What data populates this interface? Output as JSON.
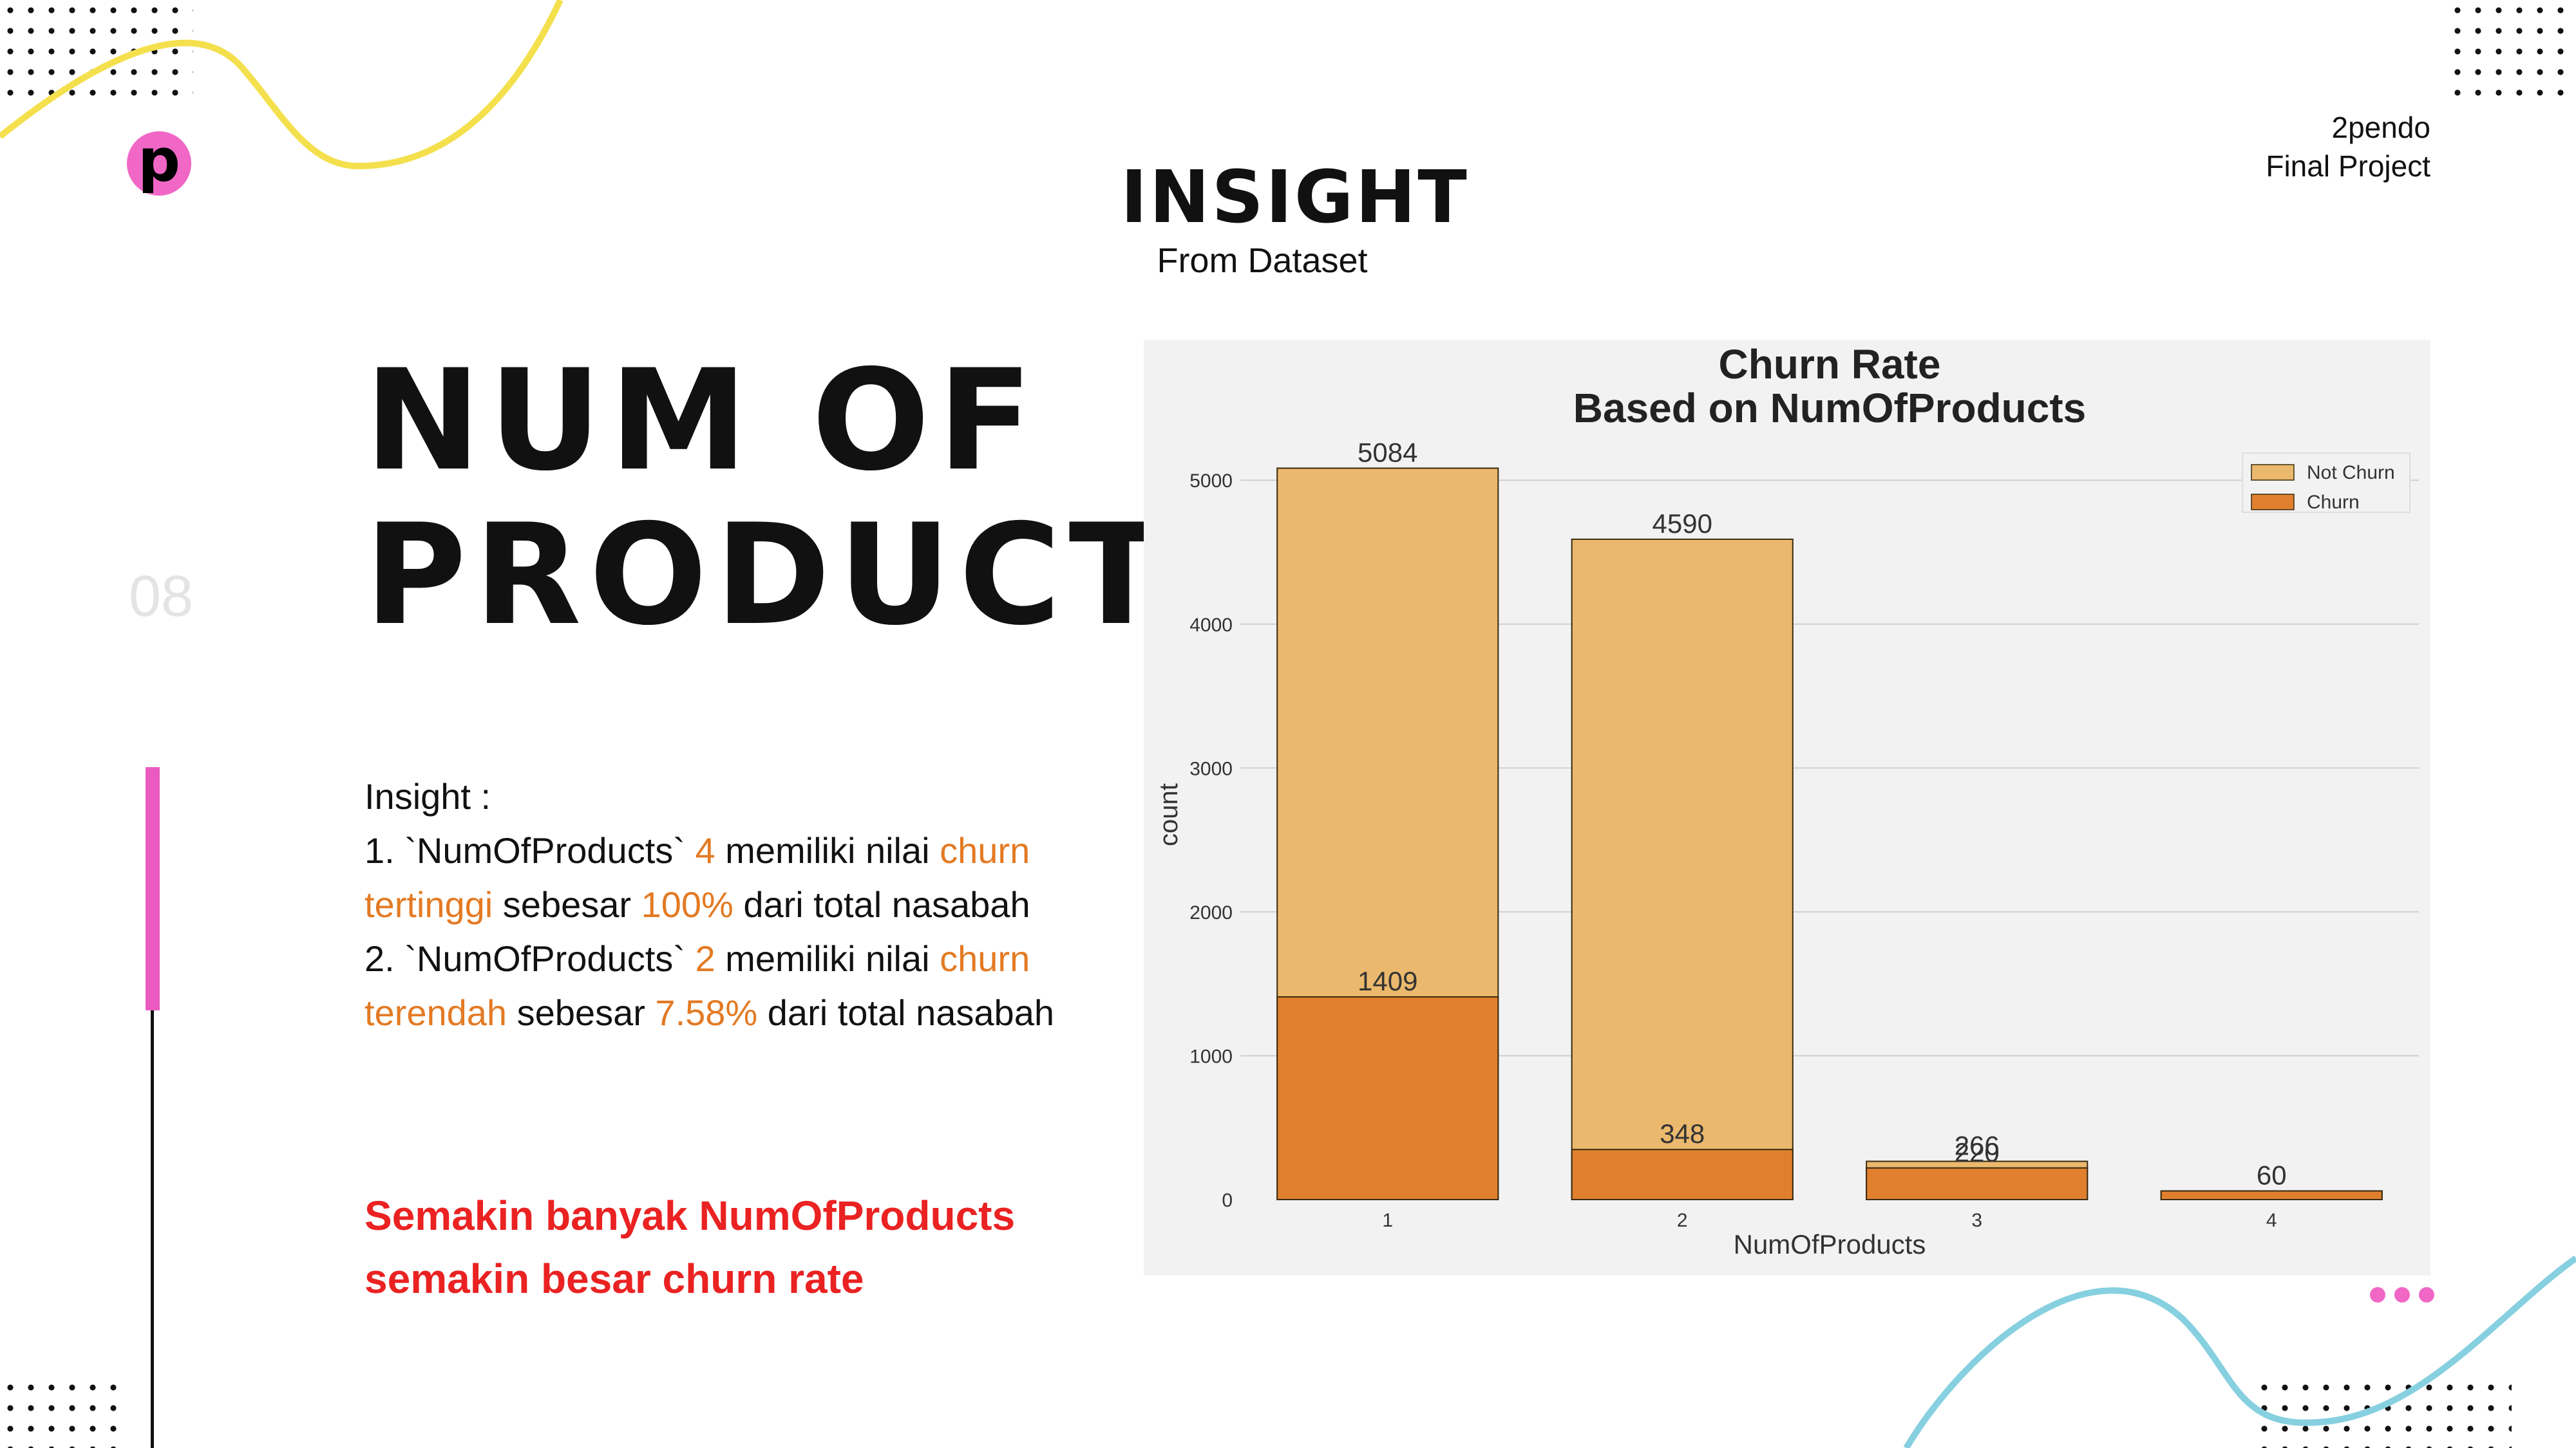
{
  "header": {
    "logo_letter": "p",
    "title": "INSIGHT",
    "subtitle": "From Dataset",
    "brand_line1": "2pendo",
    "brand_line2": "Final Project"
  },
  "slide": {
    "number": "08",
    "title_line1": "NUM OF",
    "title_line2": "PRODUCTS"
  },
  "insight": {
    "label": "Insight :",
    "line1_a": "1. `NumOfProducts` ",
    "line1_num": "4",
    "line1_b": " memiliki nilai ",
    "line1_hl": "churn",
    "line2_hl": "tertinggi",
    "line2_a": " sebesar ",
    "line2_pct": "100%",
    "line2_b": " dari total nasabah",
    "line3_a": "2. `NumOfProducts` ",
    "line3_num": "2",
    "line3_b": " memiliki nilai ",
    "line3_hl": "churn",
    "line4_hl": "terendah",
    "line4_a": " sebesar ",
    "line4_pct": "7.58%",
    "line4_b": " dari total nasabah"
  },
  "conclusion": {
    "line1": "Semakin banyak NumOfProducts",
    "line2": "semakin besar churn rate"
  },
  "colors": {
    "not_churn": "#ebb96d",
    "churn": "#e0802e",
    "highlight": "#e37a23",
    "conclusion": "#ea2222",
    "accent_pink": "#f067c6",
    "wave_yellow": "#f4e04d",
    "wave_blue": "#86d0e0"
  },
  "chart_data": {
    "type": "bar",
    "stacked": "overlay",
    "title": "Churn Rate",
    "subtitle": "Based on NumOfProducts",
    "xlabel": "NumOfProducts",
    "ylabel": "count",
    "categories": [
      "1",
      "2",
      "3",
      "4"
    ],
    "yticks": [
      0,
      1000,
      2000,
      3000,
      4000,
      5000
    ],
    "ylim": [
      0,
      5350
    ],
    "grid": true,
    "legend_position": "top-right",
    "series": [
      {
        "name": "Not Churn",
        "values": [
          5084,
          4590,
          266,
          60
        ]
      },
      {
        "name": "Churn",
        "values": [
          1409,
          348,
          220,
          60
        ]
      }
    ],
    "data_labels": {
      "Not Churn": [
        "5084",
        "4590",
        "266",
        "60"
      ],
      "Churn": [
        "1409",
        "348",
        "220",
        ""
      ]
    }
  }
}
